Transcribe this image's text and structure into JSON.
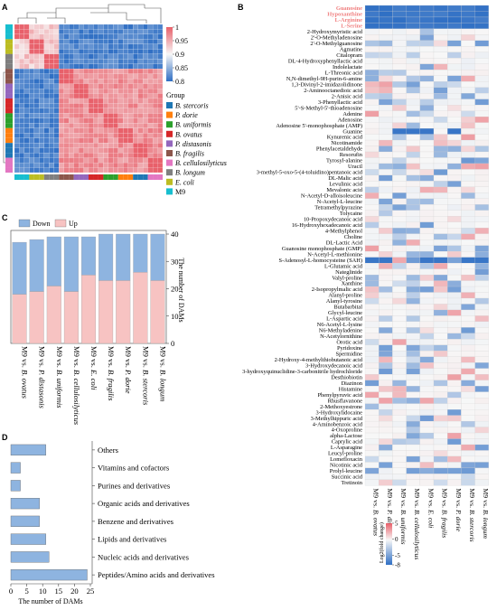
{
  "panels": {
    "A": {
      "letter": "A"
    },
    "B": {
      "letter": "B"
    },
    "C": {
      "letter": "C"
    },
    "D": {
      "letter": "D"
    }
  },
  "colors": {
    "down": "#8eb4e0",
    "up": "#f7c3c2",
    "heat_neg": "#2f6fc4",
    "heat_pos": "#e8606a",
    "highlight_text": "#f08080",
    "bar_d": "#8eb4e0"
  },
  "chart_data": [
    {
      "panel": "A",
      "type": "heatmap",
      "title": "",
      "colorbar": {
        "min": 0.8,
        "max": 1,
        "ticks": [
          "1",
          "0.95",
          "0.9",
          "0.85",
          "0.8"
        ]
      },
      "legend_title": "Group",
      "groups": [
        {
          "name": "B. stercoris",
          "color": "#1f77b4"
        },
        {
          "name": "P. dorie",
          "color": "#ff7f0e"
        },
        {
          "name": "B. uniformis",
          "color": "#2ca02c"
        },
        {
          "name": "B. ovatus",
          "color": "#d62728"
        },
        {
          "name": "P. distasonis",
          "color": "#9467bd"
        },
        {
          "name": "B. fragilis",
          "color": "#8c564b"
        },
        {
          "name": "B. cellulosilyticus",
          "color": "#e377c2"
        },
        {
          "name": "B. longum",
          "color": "#7f7f7f"
        },
        {
          "name": "E. coli",
          "color": "#bcbd22"
        },
        {
          "name": "M9",
          "color": "#17becf"
        }
      ],
      "group_order": [
        "M9",
        "E. coli",
        "B. longum",
        "B. fragilis",
        "P. distasonis",
        "B. ovatus",
        "B. uniformis",
        "P. dorie",
        "B. stercoris",
        "B. cellulosilyticus"
      ],
      "note": "30 samples (3 per group); blocks of high correlation within groups"
    },
    {
      "panel": "B",
      "type": "heatmap",
      "colorbar_label": "Log2(fold change)",
      "colorbar_ticks": [
        "5",
        "0",
        "-5",
        "-8"
      ],
      "colorbar_range": [
        -8,
        5
      ],
      "highlighted_rows": [
        "Guanosine",
        "Hypoxanthine",
        "L-Arginine",
        "L-Serine"
      ],
      "rows": [
        "Guanosine",
        "Hypoxanthine",
        "L-Arginine",
        "L-Serine",
        "2-Hydroxymyristic acid",
        "2'-O-Methyladenosine",
        "2'-O-Methylguanosine",
        "Agmatine",
        "Citalopram",
        "DL-4-Hydroxyphenyllactic acid",
        "Indolelactate",
        "L-Threonic acid",
        "N,N-dimethyl-9H-purin-6-amine",
        "1,3-Divinyl-2-imidazolidinone",
        "2-Aminooctanedioic acid",
        "2-Anisic acid",
        "3-Phenyllactic acid",
        "5'-S-Methyl-5'-thioadenosine",
        "Adenine",
        "Adenosine",
        "Adenosine 5'-monophosphate (AMP)",
        "Guanine",
        "Kynurenic acid",
        "Nicotinamide",
        "Phenylacetaldehyde",
        "Resorufin",
        "Tyrosyl-alanine",
        "Uracil",
        "3-methyl-5-oxo-5-(4-toluidino)pentanoic acid",
        "DL-Malic acid",
        "Levulinic acid",
        "Mevalonic acid",
        "N-Acetyl-D-alloisoleucine",
        "N-Acetyl-L-leucine",
        "Tetramethylpyrazine",
        "Tolycaine",
        "10-Propoxydecanoic acid",
        "16-Hydroxyhexadecanoic acid",
        "4-Methylphenol",
        "Choline",
        "DL-Lactic Acid",
        "Guanosine monophosphate (GMP)",
        "N-Acetyl-L-methionine",
        "S-Adenosyl-L-homocysteine (SAH)",
        "L-Glutamic acid",
        "Nateglinide",
        "Valyl-proline",
        "Xanthine",
        "2-Isopropylmalic acid",
        "Alanyl-proline",
        "Alanyl-tyrosine",
        "Butabarbital",
        "Glycyl-leucine",
        "L-Aspartic acid",
        "N6-Acetyl-L-lysine",
        "N6-Methyladenine",
        "N-Acetylornithine",
        "Orotic acid",
        "Pyridoxine",
        "Spermidine",
        "2-Hydroxy-4-methylthiobutanoic acid",
        "3-Hydroxydecanoic acid",
        "3-hydroxyquinuclidine-3-carbonitrile hydrochloride",
        "Desthiobiotin",
        "Diazinon",
        "Histamine",
        "Phenylpyruvic acid",
        "Rhusflavanone",
        "2-Methoxyestrone",
        "3-Hydroxylidocaine",
        "3-Methylhippuric acid",
        "4-Aminobenzoic acid",
        "4-Oxoproline",
        "alpha-Lactose",
        "Caprylic acid",
        "L-Asparagine",
        "Leucyl-proline",
        "Lomefloxacin",
        "Nicotinic acid",
        "Prolyl-leucine",
        "Succinic acid",
        "Tretinoin"
      ],
      "columns": [
        "M9 vs. B. ovatus",
        "M9 vs. P. distasonis",
        "M9 vs. B. uniformis",
        "M9 vs. B. cellulosilyticus",
        "M9 vs. E. coli",
        "M9 vs. B. fragilis",
        "M9 vs. P. dorie",
        "M9 vs. B. stercoris",
        "M9 vs. B. longum"
      ]
    },
    {
      "panel": "C",
      "type": "bar",
      "stacked": true,
      "categories": [
        "M9 vs. B. ovatus",
        "M9 vs. P. distasonis",
        "M9 vs. B. uniformis",
        "M9 vs. B. cellulosilyticus",
        "M9 vs. E. coli",
        "M9 vs. B. fragilis",
        "M9 vs. P. dorie",
        "M9 vs. B. stercoris",
        "M9 vs. B. longum"
      ],
      "series": [
        {
          "name": "Up",
          "values": [
            18,
            19,
            21,
            19,
            25,
            23,
            23,
            26,
            23
          ]
        },
        {
          "name": "Down",
          "values": [
            19,
            19,
            18,
            20,
            14,
            17,
            17,
            14,
            17
          ]
        }
      ],
      "ylabel": "The number of DAMs",
      "ylim": [
        0,
        40
      ],
      "yticks": [
        0,
        10,
        20,
        30,
        40
      ],
      "legend_position": "top-left"
    },
    {
      "panel": "D",
      "type": "bar",
      "orientation": "horizontal",
      "categories": [
        "Others",
        "Vitamins and cofactors",
        "Purines and derivatives",
        "Organic acids and derivatives",
        "Benzene and derivatives",
        "Lipids and derivatives",
        "Nucleic acids and derivatives",
        "Peptides/Amino acids and derivatives"
      ],
      "values": [
        11,
        3,
        3,
        9,
        9,
        11,
        12,
        24
      ],
      "xlabel": "The number of DAMs",
      "xlim": [
        0,
        25
      ],
      "xticks": [
        0,
        5,
        10,
        15,
        20,
        25
      ]
    }
  ]
}
